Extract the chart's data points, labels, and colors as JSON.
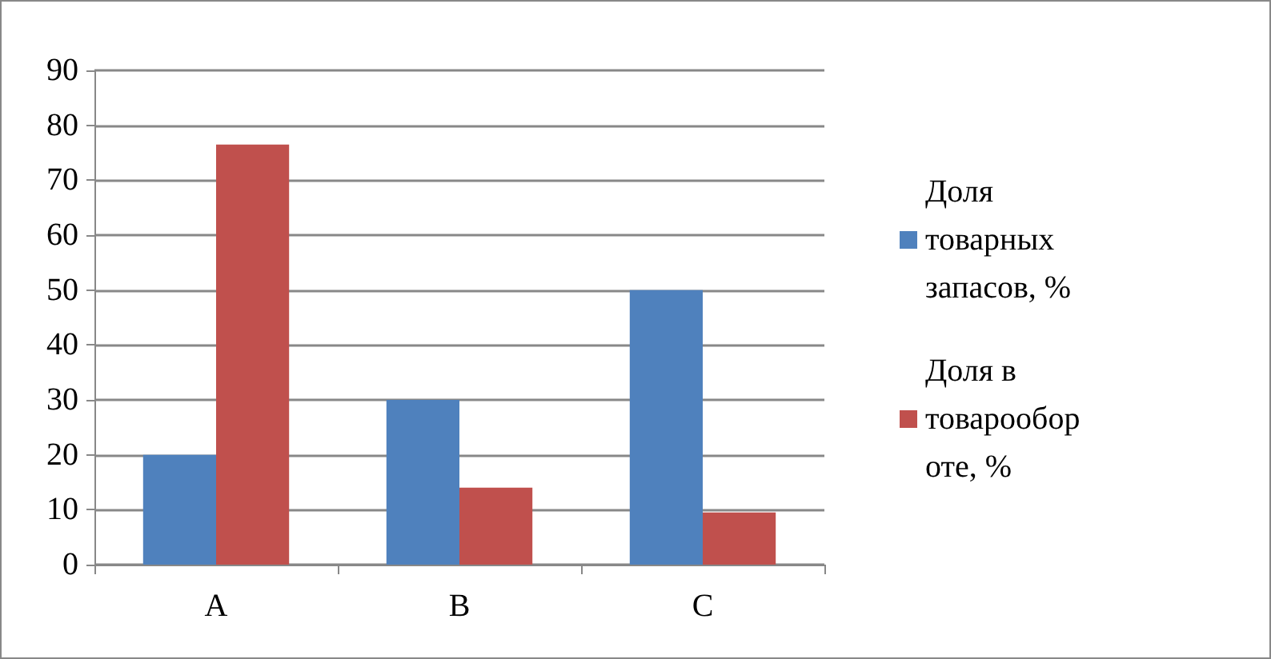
{
  "chart_data": {
    "type": "bar",
    "categories": [
      "A",
      "B",
      "C"
    ],
    "series": [
      {
        "name": "Доля товарных запасов, %",
        "color": "#4f81bd",
        "values": [
          20,
          30,
          50
        ]
      },
      {
        "name": "Доля в товарообороте, %",
        "color": "#c0504d",
        "values": [
          76.5,
          14,
          9.5
        ]
      }
    ],
    "ylim": [
      0,
      90
    ],
    "yticks": [
      0,
      10,
      20,
      30,
      40,
      50,
      60,
      70,
      80,
      90
    ],
    "grid": "y",
    "legend": "right"
  }
}
